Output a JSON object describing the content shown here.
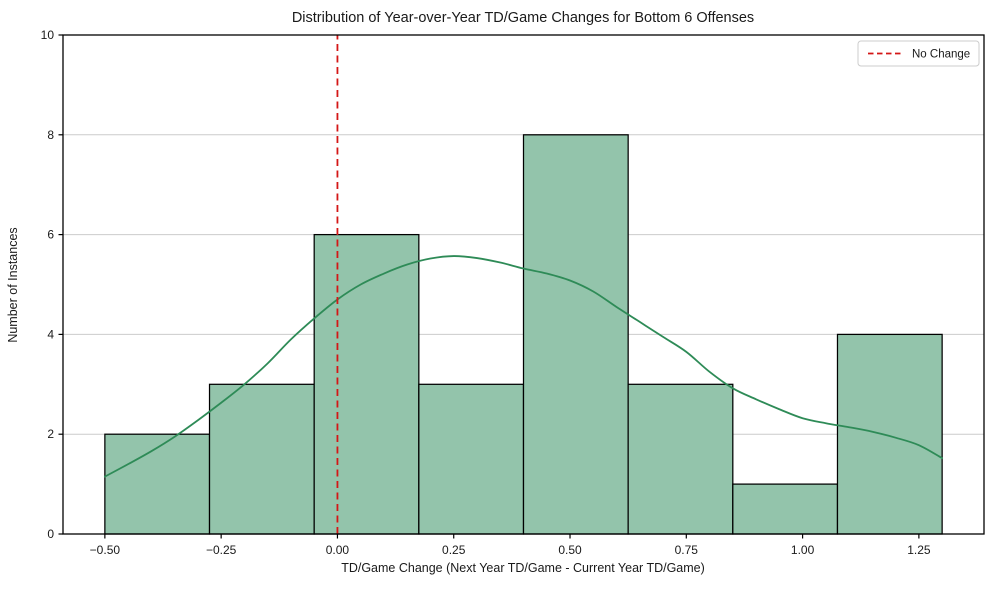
{
  "figure": {
    "kind": "matplotlib-style histogram with KDE"
  },
  "chart_data": {
    "type": "histogram",
    "title": "Distribution of Year-over-Year TD/Game Changes for Bottom 6 Offenses",
    "xlabel": "TD/Game Change (Next Year TD/Game - Current Year TD/Game)",
    "ylabel": "Number of Instances",
    "bins": {
      "edges": [
        -0.5,
        -0.275,
        -0.05,
        0.175,
        0.4,
        0.625,
        0.85,
        1.075,
        1.3
      ],
      "counts": [
        2,
        3,
        6,
        3,
        8,
        3,
        1,
        4
      ]
    },
    "kde_series": {
      "name": "KDE density (scaled to counts)",
      "points": [
        [
          -0.5,
          1.15
        ],
        [
          -0.45,
          1.4
        ],
        [
          -0.4,
          1.66
        ],
        [
          -0.35,
          1.95
        ],
        [
          -0.3,
          2.28
        ],
        [
          -0.25,
          2.63
        ],
        [
          -0.2,
          3.0
        ],
        [
          -0.15,
          3.42
        ],
        [
          -0.1,
          3.9
        ],
        [
          -0.05,
          4.32
        ],
        [
          0.0,
          4.7
        ],
        [
          0.05,
          5.0
        ],
        [
          0.1,
          5.22
        ],
        [
          0.15,
          5.4
        ],
        [
          0.2,
          5.52
        ],
        [
          0.25,
          5.57
        ],
        [
          0.3,
          5.53
        ],
        [
          0.35,
          5.44
        ],
        [
          0.4,
          5.32
        ],
        [
          0.45,
          5.22
        ],
        [
          0.5,
          5.08
        ],
        [
          0.55,
          4.86
        ],
        [
          0.6,
          4.55
        ],
        [
          0.65,
          4.25
        ],
        [
          0.7,
          3.95
        ],
        [
          0.75,
          3.65
        ],
        [
          0.8,
          3.25
        ],
        [
          0.85,
          2.92
        ],
        [
          0.9,
          2.7
        ],
        [
          0.95,
          2.5
        ],
        [
          1.0,
          2.32
        ],
        [
          1.05,
          2.22
        ],
        [
          1.1,
          2.14
        ],
        [
          1.15,
          2.05
        ],
        [
          1.2,
          1.93
        ],
        [
          1.25,
          1.78
        ],
        [
          1.3,
          1.52
        ]
      ]
    },
    "vline": {
      "x": 0.0,
      "style": "dashed"
    },
    "legend": {
      "label": "No Change",
      "position": "upper right"
    },
    "xlim": [
      -0.59,
      1.39
    ],
    "ylim": [
      0,
      10
    ],
    "xticks": [
      -0.5,
      -0.25,
      0.0,
      0.25,
      0.5,
      0.75,
      1.0,
      1.25
    ],
    "xtick_labels": [
      "−0.50",
      "−0.25",
      "0.00",
      "0.25",
      "0.50",
      "0.75",
      "1.00",
      "1.25"
    ],
    "yticks": [
      0,
      2,
      4,
      6,
      8,
      10
    ],
    "ytick_labels": [
      "0",
      "2",
      "4",
      "6",
      "8",
      "10"
    ],
    "grid": "horizontal",
    "colors": {
      "bar_fill": "#93c4ab",
      "bar_edge": "#000000",
      "kde_line": "#2e8b57",
      "vline": "#d41616",
      "grid": "#cccccc",
      "spine": "#000000",
      "text": "#1a1a1a",
      "background": "#ffffff"
    }
  }
}
